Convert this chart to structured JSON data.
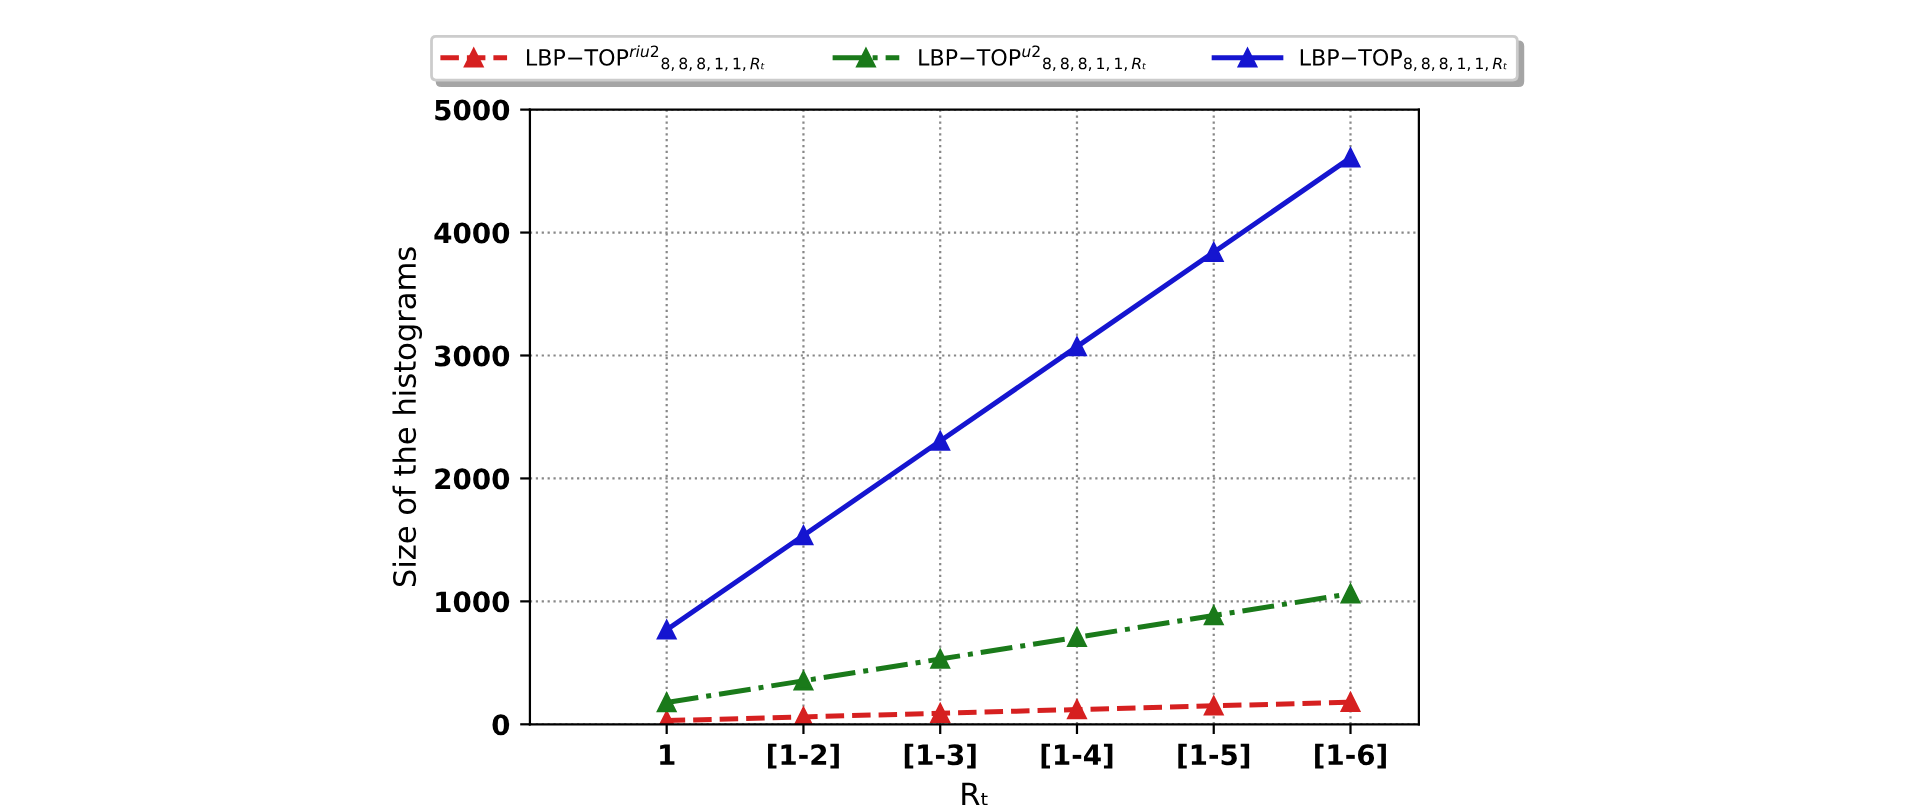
{
  "chart_data": {
    "type": "line",
    "xlabel": "Rₜ",
    "ylabel": "Size of the histograms",
    "categories": [
      "1",
      "[1-2]",
      "[1-3]",
      "[1-4]",
      "[1-5]",
      "[1-6]"
    ],
    "series": [
      {
        "name": "LBP−TOP$^{riu2}$$_{8,8,8,1,1,Rₜ}$",
        "color": "#d62020",
        "line_style": "dashed",
        "values": [
          30,
          60,
          90,
          120,
          150,
          180
        ]
      },
      {
        "name": "LBP−TOP$^{u2}$$_{8,8,8,1,1,Rₜ}$",
        "color": "#1a7a1a",
        "line_style": "dashdot",
        "values": [
          177,
          354,
          531,
          708,
          885,
          1062
        ]
      },
      {
        "name": "LBP−TOP$_{8,8,8,1,1,Rₜ}$",
        "color": "#1515d0",
        "line_style": "solid",
        "values": [
          768,
          1536,
          2304,
          3072,
          3840,
          4608
        ]
      }
    ],
    "marker": "triangle",
    "ylim": [
      0,
      5000
    ],
    "yticks": [
      0,
      1000,
      2000,
      3000,
      4000,
      5000
    ],
    "grid": true,
    "legend": "top"
  }
}
